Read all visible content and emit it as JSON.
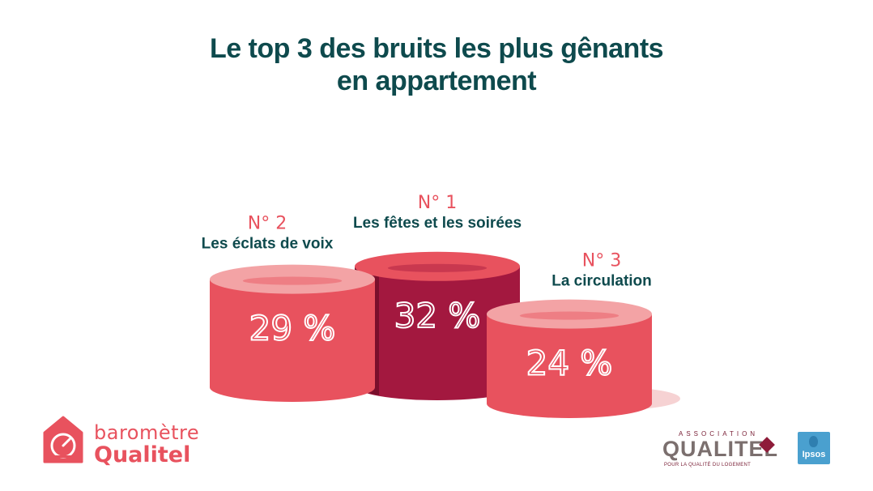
{
  "title_lines": [
    "Le top 3 des bruits les plus gênants",
    "en appartement"
  ],
  "chart_data": {
    "type": "bar",
    "categories": [
      "Les éclats de voix",
      "Les fêtes et les soirées",
      "La circulation"
    ],
    "values": [
      29,
      32,
      24
    ],
    "value_labels": [
      "29 %",
      "32 %",
      "24 %"
    ],
    "ranks": [
      "N° 2",
      "N° 1",
      "N° 3"
    ],
    "unit": "%",
    "colors": {
      "rank1": "#a3183f",
      "rank1_top": "#e8525e",
      "others": "#e8525e",
      "others_top": "#f3a3a5",
      "rank_text": "#e8525e",
      "label_text": "#0e4a4d"
    }
  },
  "brand": {
    "line1": "baromètre",
    "line2": "Qualitel",
    "icon": "gauge-house-icon"
  },
  "logos": {
    "association": "ASSOCIATION",
    "qualitel": "QUALITEL",
    "tagline": "POUR LA QUALITÉ DU LOGEMENT",
    "ipsos": "Ipsos"
  }
}
